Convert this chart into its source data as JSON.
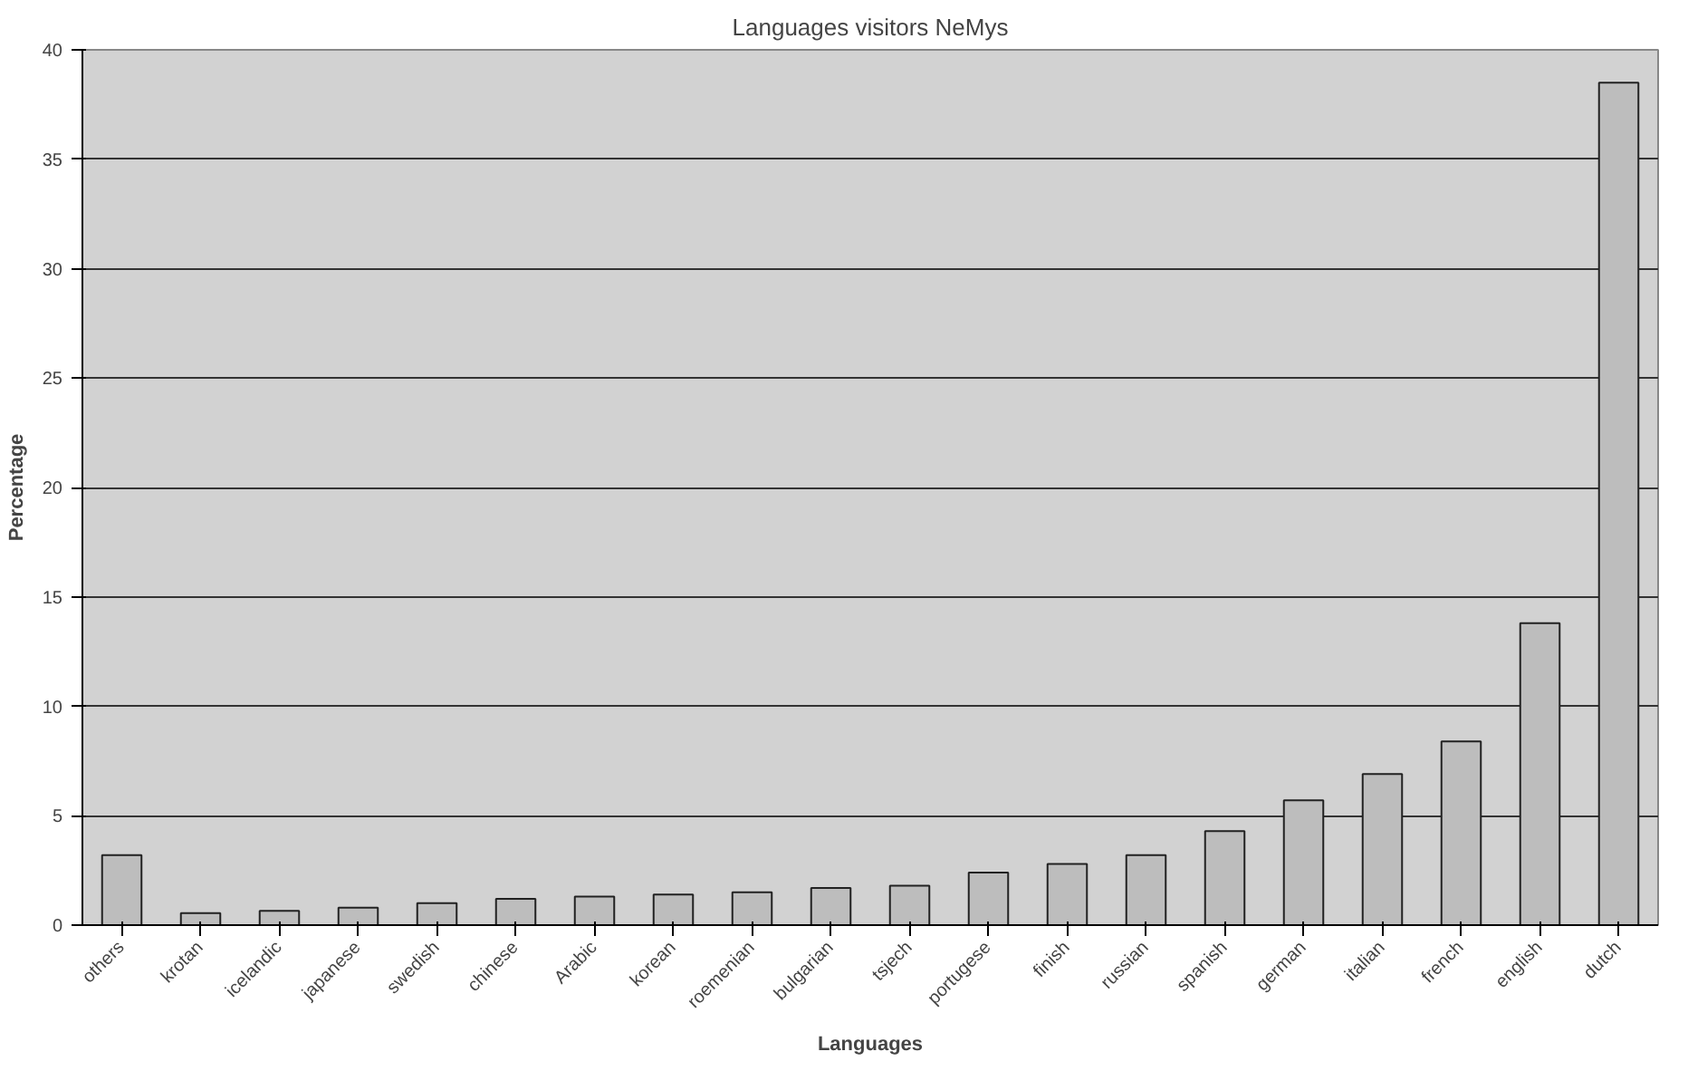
{
  "chart_data": {
    "type": "bar",
    "title": "Languages visitors NeMys",
    "xlabel": "Languages",
    "ylabel": "Percentage",
    "categories": [
      "others",
      "krotan",
      "icelandic",
      "japanese",
      "swedish",
      "chinese",
      "Arabic",
      "korean",
      "roemenian",
      "bulgarian",
      "tsjech",
      "portugese",
      "finish",
      "russian",
      "spanish",
      "german",
      "italian",
      "french",
      "english",
      "dutch"
    ],
    "values": [
      3.2,
      0.55,
      0.65,
      0.8,
      1.0,
      1.2,
      1.3,
      1.4,
      1.5,
      1.7,
      1.8,
      2.4,
      2.8,
      3.2,
      4.3,
      5.7,
      6.9,
      8.4,
      13.8,
      38.5
    ],
    "color": "#bdbdbd",
    "ylim": [
      0,
      40
    ],
    "yticks": [
      0,
      5,
      10,
      15,
      20,
      25,
      30,
      35,
      40
    ],
    "grid": "y"
  }
}
